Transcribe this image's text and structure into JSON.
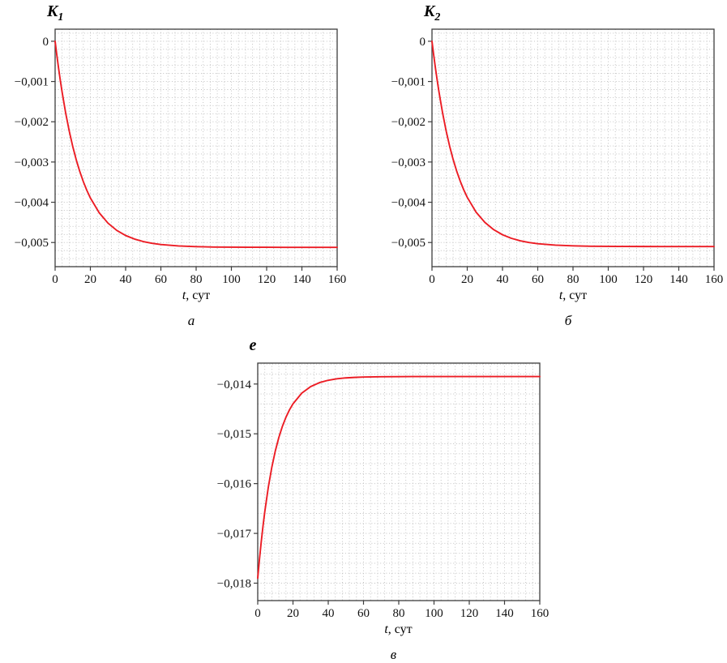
{
  "figure": {
    "background": "#ffffff"
  },
  "chart_data": [
    {
      "id": "k1",
      "type": "line",
      "title": "K",
      "title_sub": "1",
      "xlabel_italic": "t",
      "xlabel_rest": ", сут",
      "caption": "а",
      "color": "#ec1c24",
      "grid": true,
      "xlim": [
        0,
        160
      ],
      "ylim": [
        -0.0056,
        0.0003
      ],
      "x_minor": 4,
      "y_minor": 0.0002,
      "x_ticks": [
        0,
        20,
        40,
        60,
        80,
        100,
        120,
        140,
        160
      ],
      "x_tick_labels": [
        "0",
        "20",
        "40",
        "60",
        "80",
        "100",
        "120",
        "140",
        "160"
      ],
      "y_ticks": [
        0,
        -0.001,
        -0.002,
        -0.003,
        -0.004,
        -0.005
      ],
      "y_tick_labels": [
        "0",
        "−0,001",
        "−0,002",
        "−0,003",
        "−0,004",
        "−0,005"
      ],
      "x": [
        0,
        1,
        2,
        3,
        4,
        6,
        8,
        10,
        12,
        14,
        16,
        18,
        20,
        25,
        30,
        35,
        40,
        45,
        50,
        55,
        60,
        70,
        80,
        90,
        100,
        110,
        120,
        130,
        140,
        150,
        160
      ],
      "y": [
        0,
        -0.000353,
        -0.000681,
        -0.000988,
        -0.001272,
        -0.001785,
        -0.002229,
        -0.002614,
        -0.002947,
        -0.003236,
        -0.003487,
        -0.003704,
        -0.003893,
        -0.004261,
        -0.004519,
        -0.0047,
        -0.004826,
        -0.004914,
        -0.004976,
        -0.005019,
        -0.005049,
        -0.005085,
        -0.005103,
        -0.005112,
        -0.005116,
        -0.005118,
        -0.005119,
        -0.00512,
        -0.00512,
        -0.00512,
        -0.00512
      ]
    },
    {
      "id": "k2",
      "type": "line",
      "title": "K",
      "title_sub": "2",
      "xlabel_italic": "t",
      "xlabel_rest": ", сут",
      "caption": "б",
      "color": "#ec1c24",
      "grid": true,
      "xlim": [
        0,
        160
      ],
      "ylim": [
        -0.0056,
        0.0003
      ],
      "x_minor": 4,
      "y_minor": 0.0002,
      "x_ticks": [
        0,
        20,
        40,
        60,
        80,
        100,
        120,
        140,
        160
      ],
      "x_tick_labels": [
        "0",
        "20",
        "40",
        "60",
        "80",
        "100",
        "120",
        "140",
        "160"
      ],
      "y_ticks": [
        0,
        -0.001,
        -0.002,
        -0.003,
        -0.004,
        -0.005
      ],
      "y_tick_labels": [
        "0",
        "−0,001",
        "−0,002",
        "−0,003",
        "−0,004",
        "−0,005"
      ],
      "x": [
        0,
        1,
        2,
        3,
        4,
        6,
        8,
        10,
        12,
        14,
        16,
        18,
        20,
        25,
        30,
        35,
        40,
        45,
        50,
        55,
        60,
        70,
        80,
        90,
        100,
        110,
        120,
        130,
        140,
        150,
        160
      ],
      "y": [
        0,
        -0.000351,
        -0.000679,
        -0.000984,
        -0.001267,
        -0.001778,
        -0.00222,
        -0.002604,
        -0.002936,
        -0.003224,
        -0.003473,
        -0.00369,
        -0.003877,
        -0.004245,
        -0.004501,
        -0.004681,
        -0.004807,
        -0.004895,
        -0.004957,
        -0.004999,
        -0.005029,
        -0.005066,
        -0.005083,
        -0.005092,
        -0.005096,
        -0.005098,
        -0.005099,
        -0.0051,
        -0.0051,
        -0.0051,
        -0.0051
      ]
    },
    {
      "id": "e",
      "type": "line",
      "title": "e",
      "title_sub": "",
      "xlabel_italic": "t",
      "xlabel_rest": ", сут",
      "caption": "в",
      "color": "#ec1c24",
      "grid": true,
      "xlim": [
        0,
        160
      ],
      "ylim": [
        -0.01835,
        -0.01358
      ],
      "x_minor": 4,
      "y_minor": 0.0002,
      "x_ticks": [
        0,
        20,
        40,
        60,
        80,
        100,
        120,
        140,
        160
      ],
      "x_tick_labels": [
        "0",
        "20",
        "40",
        "60",
        "80",
        "100",
        "120",
        "140",
        "160"
      ],
      "y_ticks": [
        -0.014,
        -0.015,
        -0.016,
        -0.017,
        -0.018
      ],
      "y_tick_labels": [
        "−0,014",
        "−0,015",
        "−0,016",
        "−0,017",
        "−0,018"
      ],
      "x": [
        0,
        1,
        2,
        3,
        4,
        6,
        8,
        10,
        12,
        14,
        16,
        18,
        20,
        25,
        30,
        35,
        40,
        45,
        50,
        55,
        60,
        70,
        80,
        90,
        100,
        110,
        120,
        130,
        140,
        150,
        160
      ],
      "y": [
        -0.0179,
        -0.017515,
        -0.017166,
        -0.01685,
        -0.016565,
        -0.016073,
        -0.01567,
        -0.01534,
        -0.01507,
        -0.014849,
        -0.014668,
        -0.014519,
        -0.014398,
        -0.014183,
        -0.014052,
        -0.013972,
        -0.013924,
        -0.013895,
        -0.013877,
        -0.013867,
        -0.01386,
        -0.013854,
        -0.013851,
        -0.01385,
        -0.01385,
        -0.01385,
        -0.01385,
        -0.01385,
        -0.01385,
        -0.01385,
        -0.01385
      ]
    }
  ]
}
